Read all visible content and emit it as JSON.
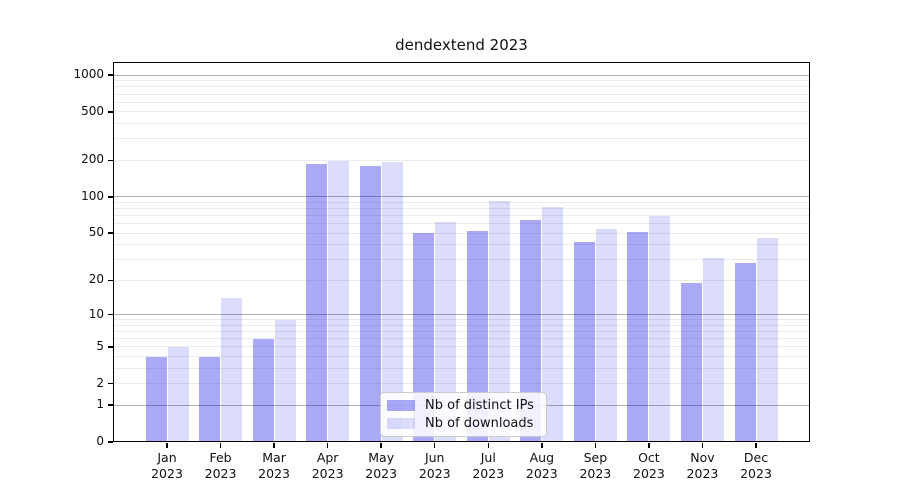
{
  "title": "dendextend 2023",
  "legend": {
    "items": [
      {
        "label": "Nb of distinct IPs"
      },
      {
        "label": "Nb of downloads"
      }
    ]
  },
  "colors": {
    "bar_distinct_ips": "rgba(8,8,230,0.35)",
    "bar_downloads": "rgba(8,8,230,0.14)",
    "grid_major": "#b0b0b0",
    "grid_minor": "#ebebeb",
    "spine": "#000000"
  },
  "chart_data": {
    "type": "bar",
    "title": "dendextend 2023",
    "categories": [
      "Jan",
      "Feb",
      "Mar",
      "Apr",
      "May",
      "Jun",
      "Jul",
      "Aug",
      "Sep",
      "Oct",
      "Nov",
      "Dec"
    ],
    "year_label": "2023",
    "series": [
      {
        "name": "Nb of distinct IPs",
        "color": "rgba(8,8,230,0.35)",
        "values": [
          4,
          4,
          6,
          185,
          180,
          50,
          52,
          65,
          42,
          51,
          19,
          28
        ]
      },
      {
        "name": "Nb of downloads",
        "color": "rgba(8,8,230,0.14)",
        "values": [
          5,
          14,
          9,
          196,
          193,
          62,
          92,
          82,
          54,
          70,
          31,
          46
        ]
      }
    ],
    "y_ticks": [
      0,
      1,
      2,
      5,
      10,
      20,
      50,
      100,
      200,
      500,
      1000
    ],
    "y_scale": "log10(value+1)",
    "ylim": [
      0,
      1280
    ],
    "grid": {
      "major": [
        1,
        10,
        100,
        1000
      ],
      "minor_rule": "2..9 per decade"
    },
    "legend_position": "lower center",
    "xlabel": "",
    "ylabel": ""
  }
}
